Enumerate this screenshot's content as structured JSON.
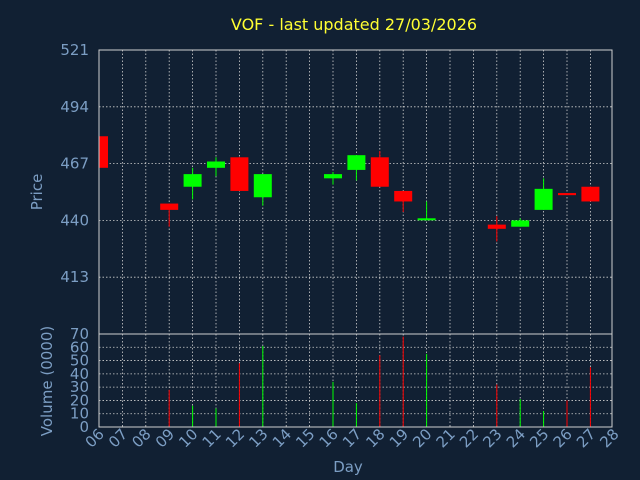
{
  "title": "VOF - last updated 27/03/2026",
  "colors": {
    "background": "#112033",
    "title": "#ffff33",
    "axis_text": "#7c9ec4",
    "frame": "#d0d0d0",
    "grid": "#d0d0d0",
    "up": "#00ff00",
    "down": "#ff0000"
  },
  "chart_data": [
    {
      "type": "candlestick",
      "ylabel": "Price",
      "ylim": [
        386,
        521
      ],
      "yticks": [
        413,
        440,
        467,
        494,
        521
      ],
      "x_day_range": [
        6,
        28
      ],
      "grid": true,
      "candles": [
        {
          "day": 6,
          "open": 480,
          "close": 465,
          "high": 480,
          "low": 465
        },
        {
          "day": 9,
          "open": 448,
          "close": 445,
          "high": 448,
          "low": 437
        },
        {
          "day": 10,
          "open": 456,
          "close": 462,
          "high": 465,
          "low": 450
        },
        {
          "day": 11,
          "open": 465,
          "close": 468,
          "high": 470,
          "low": 461
        },
        {
          "day": 12,
          "open": 470,
          "close": 454,
          "high": 470,
          "low": 454
        },
        {
          "day": 13,
          "open": 451,
          "close": 462,
          "high": 462,
          "low": 447
        },
        {
          "day": 16,
          "open": 460,
          "close": 462,
          "high": 463,
          "low": 457
        },
        {
          "day": 17,
          "open": 464,
          "close": 471,
          "high": 471,
          "low": 459
        },
        {
          "day": 18,
          "open": 470,
          "close": 456,
          "high": 473,
          "low": 456
        },
        {
          "day": 19,
          "open": 454,
          "close": 449,
          "high": 454,
          "low": 444
        },
        {
          "day": 20,
          "open": 441,
          "close": 441,
          "high": 449,
          "low": 440
        },
        {
          "day": 23,
          "open": 438,
          "close": 436,
          "high": 442,
          "low": 430
        },
        {
          "day": 24,
          "open": 437,
          "close": 440,
          "high": 441,
          "low": 437
        },
        {
          "day": 25,
          "open": 445,
          "close": 455,
          "high": 460,
          "low": 445
        },
        {
          "day": 26,
          "open": 453,
          "close": 452,
          "high": 453,
          "low": 452
        },
        {
          "day": 27,
          "open": 456,
          "close": 449,
          "high": 456,
          "low": 449
        }
      ]
    },
    {
      "type": "bar",
      "ylabel": "Volume (0000)",
      "xlabel": "Day",
      "ylim": [
        0,
        70
      ],
      "yticks": [
        0,
        10,
        20,
        30,
        40,
        50,
        60,
        70
      ],
      "x_day_range": [
        6,
        28
      ],
      "xticks": [
        "06",
        "07",
        "08",
        "09",
        "10",
        "11",
        "12",
        "13",
        "14",
        "15",
        "16",
        "17",
        "18",
        "19",
        "20",
        "21",
        "22",
        "23",
        "24",
        "25",
        "26",
        "27",
        "28"
      ],
      "grid": true,
      "bars": [
        {
          "day": 9,
          "value": 28,
          "dir": "down"
        },
        {
          "day": 10,
          "value": 16,
          "dir": "up"
        },
        {
          "day": 11,
          "value": 14,
          "dir": "up"
        },
        {
          "day": 12,
          "value": 48,
          "dir": "down"
        },
        {
          "day": 13,
          "value": 61,
          "dir": "up"
        },
        {
          "day": 16,
          "value": 34,
          "dir": "up"
        },
        {
          "day": 17,
          "value": 18,
          "dir": "up"
        },
        {
          "day": 18,
          "value": 54,
          "dir": "down"
        },
        {
          "day": 19,
          "value": 68,
          "dir": "down"
        },
        {
          "day": 20,
          "value": 55,
          "dir": "up"
        },
        {
          "day": 23,
          "value": 32,
          "dir": "down"
        },
        {
          "day": 24,
          "value": 21,
          "dir": "up"
        },
        {
          "day": 25,
          "value": 12,
          "dir": "up"
        },
        {
          "day": 26,
          "value": 20,
          "dir": "down"
        },
        {
          "day": 27,
          "value": 45,
          "dir": "down"
        }
      ]
    }
  ]
}
